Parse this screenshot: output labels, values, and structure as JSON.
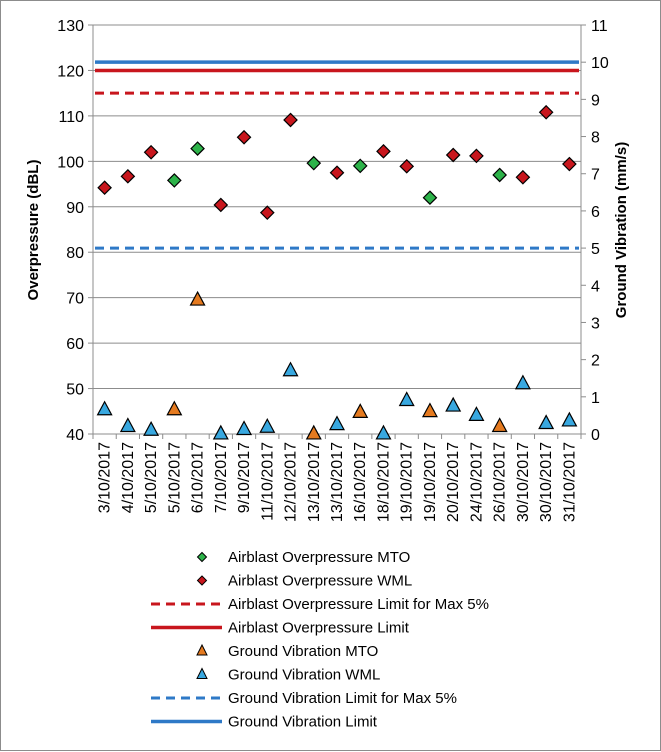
{
  "chart_data": {
    "type": "scatter",
    "categories": [
      "3/10/2017",
      "4/10/2017",
      "5/10/2017",
      "5/10/2017",
      "6/10/2017",
      "7/10/2017",
      "9/10/2017",
      "11/10/2017",
      "12/10/2017",
      "13/10/2017",
      "13/10/2017",
      "16/10/2017",
      "18/10/2017",
      "19/10/2017",
      "19/10/2017",
      "20/10/2017",
      "24/10/2017",
      "26/10/2017",
      "30/10/2017",
      "30/10/2017",
      "31/10/2017"
    ],
    "ylabel": "Overpressure (dBL)",
    "y2label": "Ground Vibration (mm/s)",
    "ylim": [
      40,
      130
    ],
    "y2lim": [
      0,
      11
    ],
    "yticks": [
      "40",
      "50",
      "60",
      "70",
      "80",
      "90",
      "100",
      "110",
      "120",
      "130"
    ],
    "y2ticks": [
      "0",
      "1",
      "2",
      "3",
      "4",
      "5",
      "6",
      "7",
      "8",
      "9",
      "10",
      "11"
    ],
    "grid": "horizontal",
    "legend_position": "bottom",
    "series": [
      {
        "name": "Airblast Overpressure MTO",
        "axis": "left",
        "kind": "diamond",
        "color": "#2db34a",
        "values": [
          null,
          null,
          null,
          95.8,
          102.8,
          null,
          null,
          null,
          null,
          99.6,
          null,
          99.0,
          null,
          null,
          92.0,
          null,
          null,
          97.0,
          null,
          null,
          null
        ]
      },
      {
        "name": "Airblast Overpressure WML",
        "axis": "left",
        "kind": "diamond",
        "color": "#c8161d",
        "values": [
          94.2,
          96.7,
          102.0,
          null,
          null,
          90.4,
          105.3,
          88.7,
          109.1,
          null,
          97.5,
          null,
          102.2,
          98.9,
          null,
          101.4,
          101.2,
          null,
          96.5,
          110.8,
          99.4
        ]
      },
      {
        "name": "Airblast Overpressure Limit for Max 5%",
        "axis": "left",
        "kind": "dashed-line",
        "color": "#c8161d",
        "value": 115
      },
      {
        "name": "Airblast Overpressure Limit",
        "axis": "left",
        "kind": "solid-line",
        "color": "#c8161d",
        "value": 120
      },
      {
        "name": "Ground Vibration MTO",
        "axis": "right",
        "kind": "triangle",
        "color": "#e57a1f",
        "values": [
          null,
          null,
          null,
          0.65,
          3.6,
          null,
          null,
          null,
          null,
          0.0,
          null,
          0.58,
          null,
          null,
          0.6,
          null,
          null,
          0.2,
          null,
          null,
          null
        ]
      },
      {
        "name": "Ground Vibration WML",
        "axis": "right",
        "kind": "triangle",
        "color": "#38a8e0",
        "values": [
          0.65,
          0.2,
          0.1,
          null,
          null,
          0.0,
          0.12,
          0.18,
          1.7,
          null,
          0.25,
          null,
          0.0,
          0.9,
          null,
          0.75,
          0.5,
          null,
          1.35,
          0.28,
          0.35
        ]
      },
      {
        "name": "Ground Vibration Limit for Max 5%",
        "axis": "right",
        "kind": "dashed-line",
        "color": "#2e79c7",
        "value": 5
      },
      {
        "name": "Ground Vibration Limit",
        "axis": "right",
        "kind": "solid-line",
        "color": "#2e79c7",
        "value": 10
      }
    ]
  }
}
